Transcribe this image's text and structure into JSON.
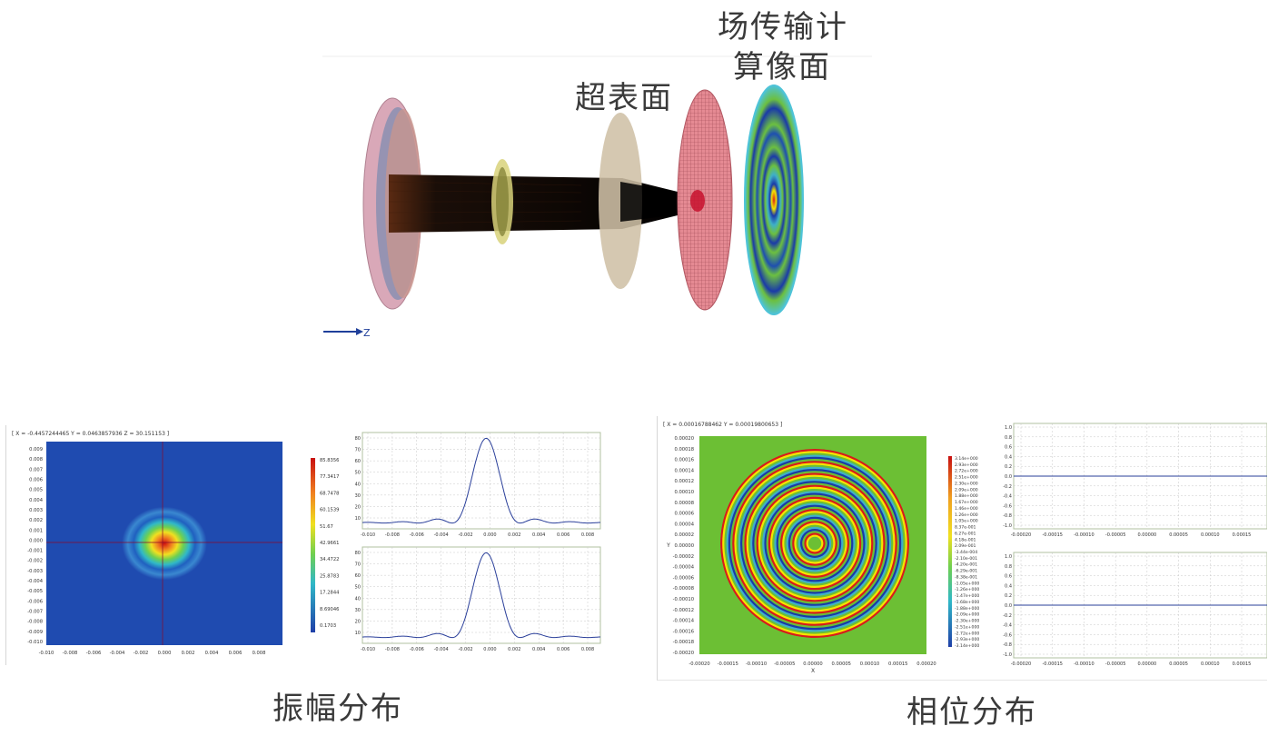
{
  "labels": {
    "fft_surface_line1": "场传输计",
    "fft_surface_line2": "算像面",
    "metasurface": "超表面",
    "amplitude": "振幅分布",
    "phase": "相位分布",
    "axis_z": "Z"
  },
  "amplitude_panel": {
    "coords": "[ X = -0.4457244465  Y = 0.0463857936  Z = 30.151153 ]",
    "y_ticks": [
      "0.009",
      "0.008",
      "0.007",
      "0.006",
      "0.005",
      "0.004",
      "0.003",
      "0.002",
      "0.001",
      "0.000",
      "-0.001",
      "-0.002",
      "-0.003",
      "-0.004",
      "-0.005",
      "-0.006",
      "-0.007",
      "-0.008",
      "-0.009",
      "-0.010"
    ],
    "x_ticks": [
      "-0.010",
      "-0.008",
      "-0.006",
      "-0.004",
      "-0.002",
      "0.000",
      "0.002",
      "0.004",
      "0.006",
      "0.008"
    ],
    "colorbar": [
      "85.8356",
      "77.3417",
      "68.7478",
      "60.1539",
      "51.67",
      "42.9661",
      "34.4722",
      "25.8783",
      "17.2844",
      "8.69046",
      "0.1703"
    ],
    "profile_y_ticks": [
      "80",
      "70",
      "60",
      "50",
      "40",
      "30",
      "20",
      "10"
    ],
    "profile_x_ticks": [
      "-0.010",
      "-0.008",
      "-0.006",
      "-0.004",
      "-0.002",
      "0.000",
      "0.002",
      "0.004",
      "0.006",
      "0.008"
    ]
  },
  "phase_panel": {
    "coords": "[ X = 0.00016788462  Y = 0.00019800653 ]",
    "y_ticks": [
      "0.00020",
      "0.00018",
      "0.00016",
      "0.00014",
      "0.00012",
      "0.00010",
      "0.00008",
      "0.00006",
      "0.00004",
      "0.00002",
      "0.00000",
      "-0.00002",
      "-0.00004",
      "-0.00006",
      "-0.00008",
      "-0.00010",
      "-0.00012",
      "-0.00014",
      "-0.00016",
      "-0.00018",
      "-0.00020"
    ],
    "x_ticks": [
      "-0.00020",
      "-0.00015",
      "-0.00010",
      "-0.00005",
      "0.00000",
      "0.00005",
      "0.00010",
      "0.00015",
      "0.00020"
    ],
    "x_label": "X",
    "y_label": "Y",
    "colorbar": [
      "3.14e+000",
      "2.93e+000",
      "2.72e+000",
      "2.51e+000",
      "2.30e+000",
      "2.09e+000",
      "1.88e+000",
      "1.67e+000",
      "1.46e+000",
      "1.26e+000",
      "1.05e+000",
      "8.37e-001",
      "6.27e-001",
      "4.18e-001",
      "2.09e-001",
      "-3.44e-004",
      "-2.10e-001",
      "-4.20e-001",
      "-6.29e-001",
      "-8.38e-001",
      "-1.05e+000",
      "-1.26e+000",
      "-1.47e+000",
      "-1.68e+000",
      "-1.88e+000",
      "-2.09e+000",
      "-2.30e+000",
      "-2.51e+000",
      "-2.72e+000",
      "-2.93e+000",
      "-3.14e+000"
    ],
    "profile_y_ticks": [
      "1.0",
      "0.8",
      "0.6",
      "0.4",
      "0.2",
      "0.0",
      "-0.2",
      "-0.4",
      "-0.6",
      "-0.8",
      "-1.0"
    ],
    "profile_x_ticks": [
      "-0.00020",
      "-0.00015",
      "-0.00010",
      "-0.00005",
      "0.00000",
      "0.00005",
      "0.00010",
      "0.00015"
    ]
  },
  "colors": {
    "jet_blue": "#1f3fa8",
    "jet_green": "#6fbf3a",
    "line_blue": "#2a3f9a",
    "label_gray": "#3a3a3a"
  }
}
